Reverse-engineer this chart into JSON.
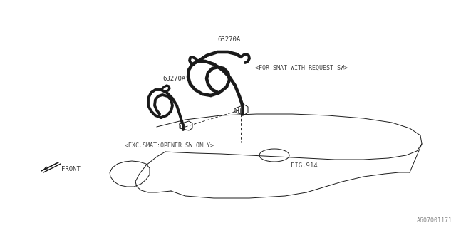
{
  "bg_color": "#ffffff",
  "line_color": "#1a1a1a",
  "part_number_1": "63270A",
  "part_number_2": "63270A",
  "label_exc": "<EXC.SMAT:OPENER SW ONLY>",
  "label_for": "<FOR SMAT:WITH REQUEST SW>",
  "label_fig": "FIG.914",
  "label_front": "FRONT",
  "watermark": "A607001171"
}
